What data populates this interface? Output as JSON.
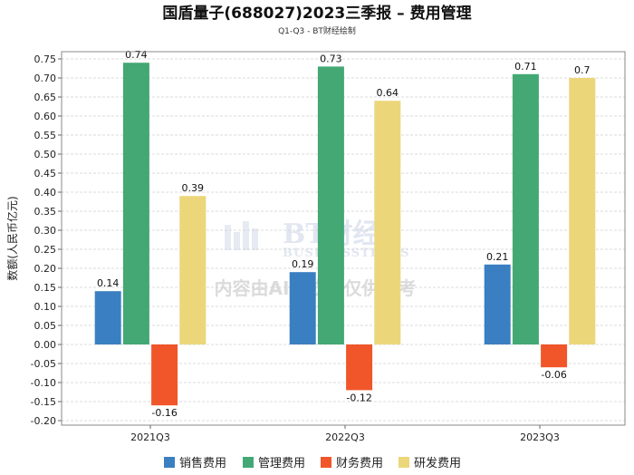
{
  "chart_data": {
    "type": "bar",
    "title": "国盾量子(688027)2023三季报 – 费用管理",
    "subtitle": "Q1-Q3 - BT财经绘制",
    "ylabel": "数额(人民币亿元)",
    "xlabel": "",
    "categories": [
      "2021Q3",
      "2022Q3",
      "2023Q3"
    ],
    "ylim": [
      -0.2,
      0.75
    ],
    "yticks": [
      -0.2,
      -0.15,
      -0.1,
      -0.05,
      0,
      0.05,
      0.1,
      0.15,
      0.2,
      0.25,
      0.3,
      0.35,
      0.4,
      0.45,
      0.5,
      0.55,
      0.6,
      0.65,
      0.7,
      0.75
    ],
    "ytick_labels": [
      "-0.20",
      "-0.15",
      "-0.10",
      "-0.05",
      "0.00",
      "0.05",
      "0.10",
      "0.15",
      "0.20",
      "0.25",
      "0.30",
      "0.35",
      "0.40",
      "0.45",
      "0.50",
      "0.55",
      "0.60",
      "0.65",
      "0.70",
      "0.75"
    ],
    "grid": true,
    "legend_position": "bottom",
    "series": [
      {
        "name": "销售费用",
        "color": "#3a7fc1",
        "values": [
          0.14,
          0.19,
          0.21
        ],
        "labels": [
          "0.14",
          "0.19",
          "0.21"
        ]
      },
      {
        "name": "管理费用",
        "color": "#43a874",
        "values": [
          0.74,
          0.73,
          0.71
        ],
        "labels": [
          "0.74",
          "0.73",
          "0.71"
        ]
      },
      {
        "name": "财务费用",
        "color": "#f0562a",
        "values": [
          -0.16,
          -0.12,
          -0.06
        ],
        "labels": [
          "-0.16",
          "-0.12",
          "-0.06"
        ]
      },
      {
        "name": "研发费用",
        "color": "#ecd67a",
        "values": [
          0.39,
          0.64,
          0.7
        ],
        "labels": [
          "0.39",
          "0.64",
          "0.7"
        ]
      }
    ],
    "watermark": {
      "brand": "BT财经",
      "brand_sub": "BUSINESSTIMES",
      "note": "内容由AI生成，仅供参考"
    }
  }
}
